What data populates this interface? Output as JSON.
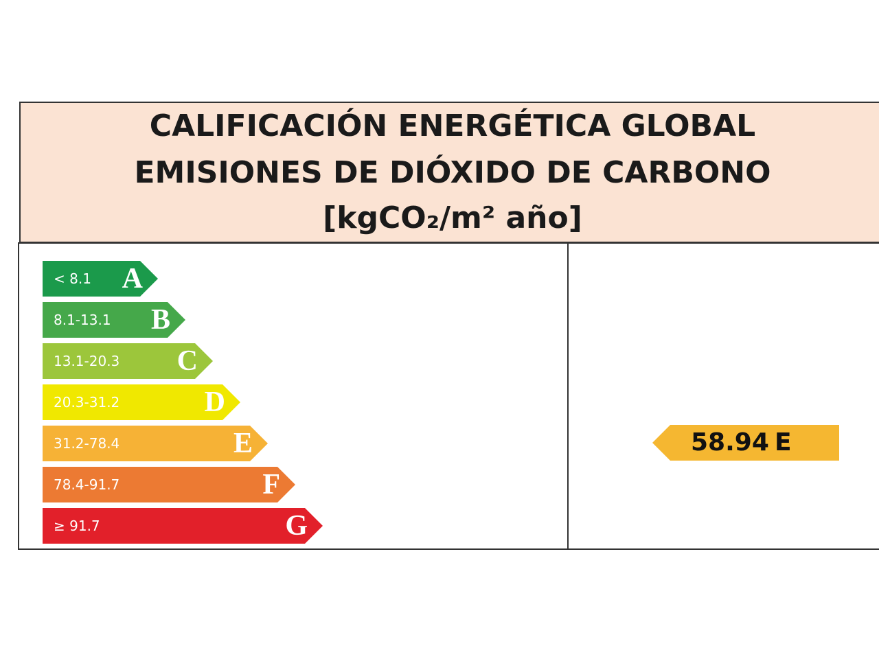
{
  "header": {
    "title_lines": [
      "CALIFICACIÓN ENERGÉTICA GLOBAL",
      "EMISIONES DE DIÓXIDO DE CARBONO",
      "[kgCO₂/m² año]"
    ]
  },
  "scale": [
    {
      "range": "< 8.1",
      "letter": "A",
      "color": "#1b9a4b"
    },
    {
      "range": "8.1-13.1",
      "letter": "B",
      "color": "#45a84a"
    },
    {
      "range": "13.1-20.3",
      "letter": "C",
      "color": "#9cc63b"
    },
    {
      "range": "20.3-31.2",
      "letter": "D",
      "color": "#f0e800"
    },
    {
      "range": "31.2-78.4",
      "letter": "E",
      "color": "#f6b236"
    },
    {
      "range": "78.4-91.7",
      "letter": "F",
      "color": "#ec7a33"
    },
    {
      "range": "≥ 91.7",
      "letter": "G",
      "color": "#e2202a"
    }
  ],
  "result": {
    "value": "58.94",
    "letter": "E",
    "color": "#f5b731"
  }
}
